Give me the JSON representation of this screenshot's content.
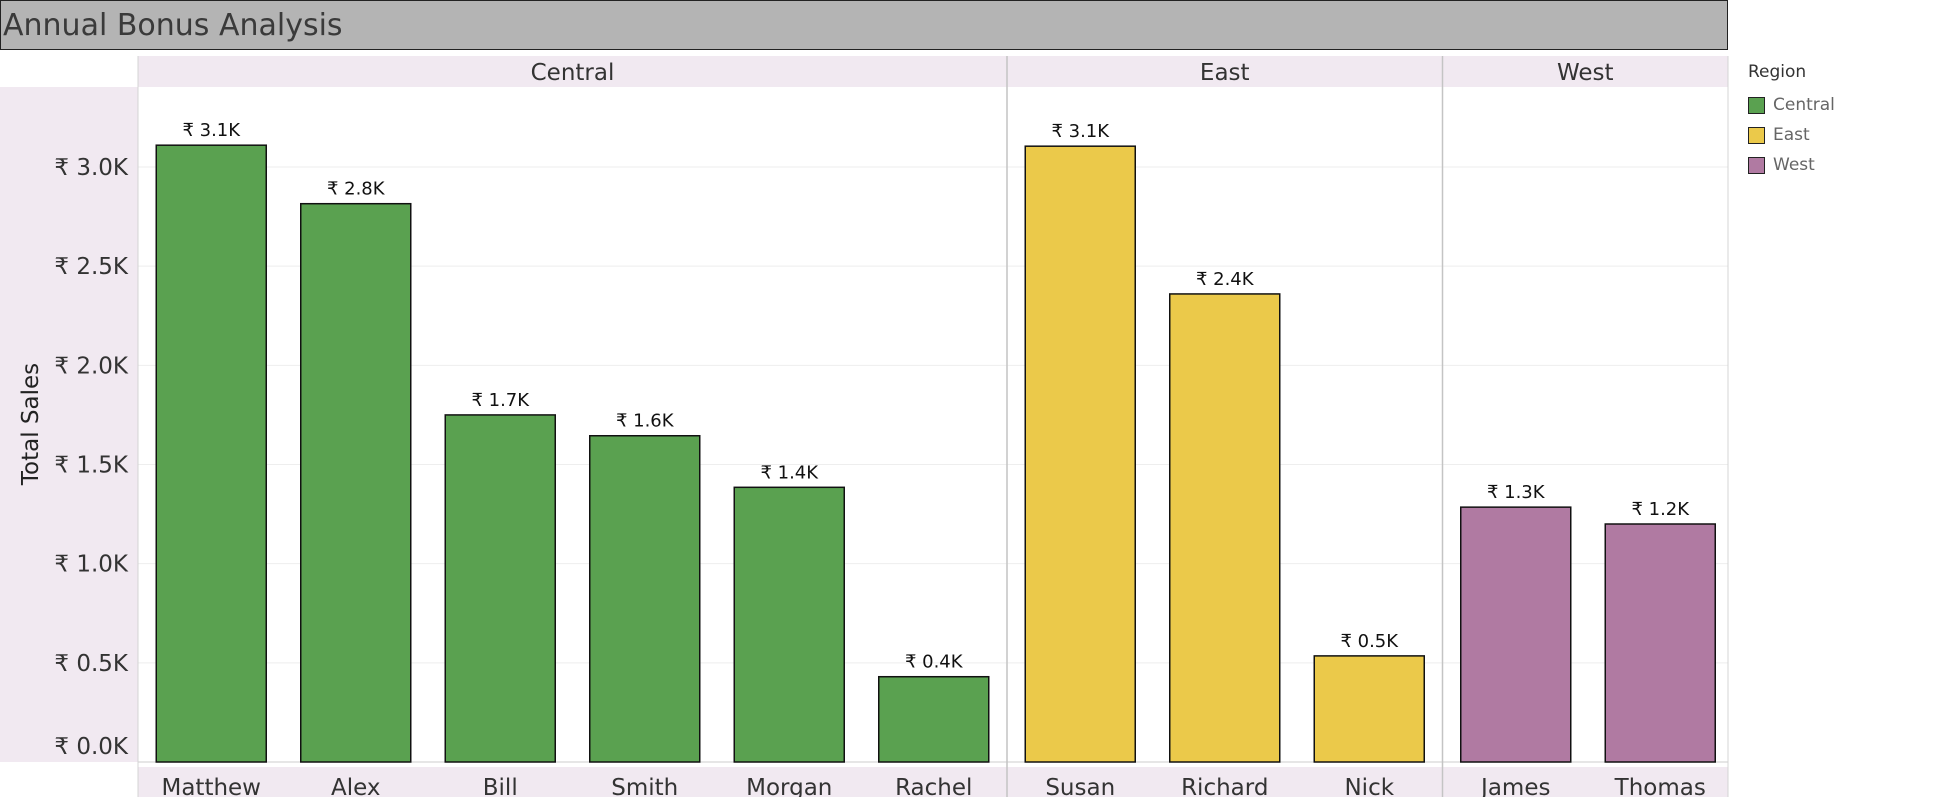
{
  "title": "Annual Bonus Analysis",
  "chart_data": {
    "type": "bar",
    "ylabel": "Total Sales",
    "xlabel": "",
    "ylim": [
      0,
      3300
    ],
    "yticks": [
      {
        "value": 0,
        "label": "₹ 0.0K"
      },
      {
        "value": 500,
        "label": "₹ 0.5K"
      },
      {
        "value": 1000,
        "label": "₹ 1.0K"
      },
      {
        "value": 1500,
        "label": "₹ 1.5K"
      },
      {
        "value": 2000,
        "label": "₹ 2.0K"
      },
      {
        "value": 2500,
        "label": "₹ 2.5K"
      },
      {
        "value": 3000,
        "label": "₹ 3.0K"
      }
    ],
    "grid": true,
    "legend": {
      "title": "Region",
      "placement": "top-right"
    },
    "panels": [
      {
        "name": "Central",
        "color": "#5aa150",
        "categories": [
          "Matthew",
          "Alex",
          "Bill",
          "Smith",
          "Morgan",
          "Rachel"
        ],
        "values": [
          3110,
          2815,
          1750,
          1645,
          1385,
          430
        ],
        "labels": [
          "₹ 3.1K",
          "₹ 2.8K",
          "₹ 1.7K",
          "₹ 1.6K",
          "₹ 1.4K",
          "₹ 0.4K"
        ]
      },
      {
        "name": "East",
        "color": "#ebc94a",
        "categories": [
          "Susan",
          "Richard",
          "Nick"
        ],
        "values": [
          3105,
          2360,
          535
        ],
        "labels": [
          "₹ 3.1K",
          "₹ 2.4K",
          "₹ 0.5K"
        ]
      },
      {
        "name": "West",
        "color": "#b07aa2",
        "categories": [
          "James",
          "Thomas"
        ],
        "values": [
          1285,
          1200
        ],
        "labels": [
          "₹ 1.3K",
          "₹ 1.2K"
        ]
      }
    ]
  }
}
